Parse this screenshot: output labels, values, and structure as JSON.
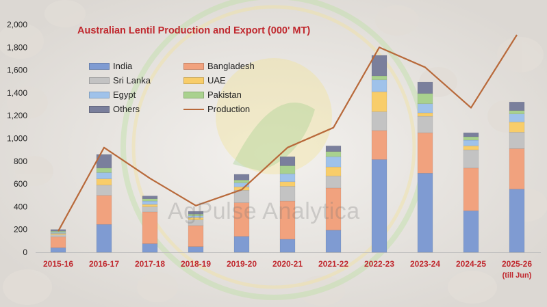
{
  "chart_data": {
    "type": "bar",
    "stacked": true,
    "title": "Australian Lentil Production and Export (000' MT)",
    "xlabel": "",
    "ylabel": "",
    "ylim": [
      0,
      2000
    ],
    "yticks": [
      "0",
      "200",
      "400",
      "600",
      "800",
      "1,000",
      "1,200",
      "1,400",
      "1,600",
      "1,800",
      "2,000"
    ],
    "grid": false,
    "legend_position": "top-left",
    "categories": [
      "2015-16",
      "2016-17",
      "2017-18",
      "2018-19",
      "2019-20",
      "2020-21",
      "2021-22",
      "2022-23",
      "2023-24",
      "2024-25",
      "2025-26"
    ],
    "category_notes": [
      "",
      "",
      "",
      "",
      "",
      "",
      "",
      "",
      "",
      "",
      "(till Jun)"
    ],
    "series": [
      {
        "name": "India",
        "color": "#7f9bd2",
        "values": [
          40,
          245,
          75,
          50,
          140,
          115,
          195,
          815,
          695,
          365,
          555
        ]
      },
      {
        "name": "Bangladesh",
        "color": "#f1a27e",
        "values": [
          95,
          255,
          280,
          185,
          295,
          335,
          370,
          255,
          355,
          375,
          355
        ]
      },
      {
        "name": "Sri Lanka",
        "color": "#c3c3c3",
        "values": [
          20,
          90,
          45,
          50,
          110,
          130,
          105,
          165,
          145,
          160,
          145
        ]
      },
      {
        "name": "UAE",
        "color": "#f8cd6a",
        "values": [
          10,
          55,
          20,
          20,
          30,
          40,
          80,
          175,
          30,
          35,
          90
        ]
      },
      {
        "name": "Egypt",
        "color": "#9fc2ea",
        "values": [
          10,
          55,
          30,
          15,
          35,
          70,
          90,
          105,
          80,
          50,
          70
        ]
      },
      {
        "name": "Pakistan",
        "color": "#a9d18e",
        "values": [
          10,
          40,
          20,
          15,
          25,
          70,
          45,
          35,
          90,
          30,
          30
        ]
      },
      {
        "name": "Others",
        "color": "#7a7f9c",
        "values": [
          15,
          120,
          25,
          25,
          50,
          80,
          50,
          180,
          100,
          35,
          75
        ]
      }
    ],
    "line_series": {
      "name": "Production",
      "color": "#b8693a",
      "values": [
        185,
        920,
        650,
        410,
        550,
        920,
        1095,
        1800,
        1625,
        1270,
        1910
      ]
    },
    "watermark": "AgPulse Analytica"
  }
}
